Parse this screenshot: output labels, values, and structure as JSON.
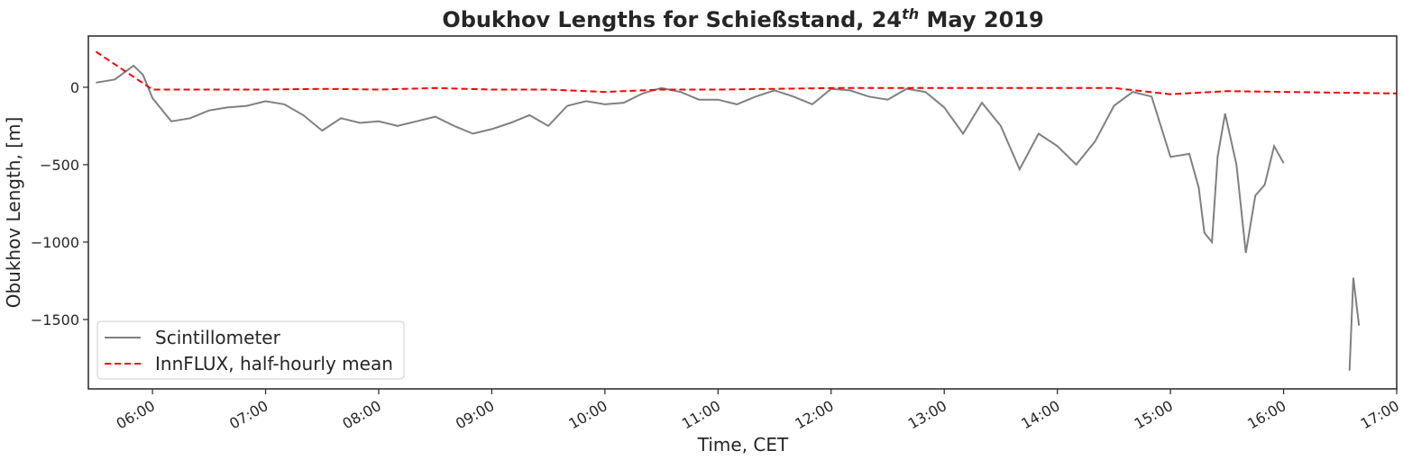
{
  "chart_data": {
    "type": "line",
    "title": [
      "Obukhov Lengths for Schießstand, 24",
      "th",
      " May 2019"
    ],
    "xlabel": "Time, CET",
    "ylabel": "Obukhov Length, [m]",
    "xlim": [
      "05:26",
      "17:00"
    ],
    "xticks": [
      "06:00",
      "07:00",
      "08:00",
      "09:00",
      "10:00",
      "11:00",
      "12:00",
      "13:00",
      "14:00",
      "15:00",
      "16:00",
      "17:00"
    ],
    "ylim": [
      -1948,
      331
    ],
    "yticks": [
      {
        "value": -1500,
        "label": "−1500"
      },
      {
        "value": -1000,
        "label": "−1000"
      },
      {
        "value": -500,
        "label": "−500"
      },
      0
    ],
    "legend": "lower left",
    "series": [
      {
        "name": "Scintillometer",
        "color": "#808080",
        "style": "solid",
        "x": [
          "05:30",
          "05:40",
          "05:50",
          "05:55",
          "06:00",
          "06:10",
          "06:20",
          "06:30",
          "06:40",
          "06:50",
          "07:00",
          "07:10",
          "07:20",
          "07:30",
          "07:40",
          "07:50",
          "08:00",
          "08:10",
          "08:20",
          "08:30",
          "08:40",
          "08:50",
          "09:00",
          "09:10",
          "09:20",
          "09:30",
          "09:40",
          "09:50",
          "10:00",
          "10:10",
          "10:20",
          "10:30",
          "10:40",
          "10:50",
          "11:00",
          "11:10",
          "11:20",
          "11:30",
          "11:40",
          "11:50",
          "12:00",
          "12:10",
          "12:20",
          "12:30",
          "12:40",
          "12:50",
          "13:00",
          "13:10",
          "13:20",
          "13:30",
          "13:40",
          "13:50",
          "14:00",
          "14:10",
          "14:20",
          "14:30",
          "14:40",
          "14:50",
          "15:00",
          "15:10",
          "15:15",
          "15:18",
          "15:22",
          "15:25",
          "15:29",
          "15:35",
          "15:40",
          "15:45",
          "15:50",
          "15:55",
          "16:00",
          "16:10",
          "16:35",
          "16:37",
          "16:40"
        ],
        "values": [
          30,
          50,
          140,
          80,
          -70,
          -220,
          -200,
          -150,
          -130,
          -120,
          -90,
          -110,
          -180,
          -280,
          -200,
          -230,
          -220,
          -250,
          -220,
          -190,
          -250,
          -300,
          -270,
          -230,
          -180,
          -250,
          -120,
          -90,
          -110,
          -100,
          -40,
          -5,
          -30,
          -80,
          -80,
          -110,
          -60,
          -20,
          -60,
          -110,
          -10,
          -20,
          -60,
          -80,
          -10,
          -30,
          -130,
          -300,
          -100,
          -250,
          -530,
          -300,
          -380,
          -500,
          -350,
          -120,
          -30,
          -60,
          -450,
          -430,
          -650,
          -940,
          -1000,
          -450,
          -170,
          -500,
          -1070,
          -700,
          -630,
          -380,
          -490,
          null,
          -1830,
          -1230,
          -1540
        ]
      },
      {
        "name": "InnFLUX, half-hourly mean",
        "color": "#ff0000",
        "style": "dashed",
        "x": [
          "05:30",
          "06:00",
          "06:30",
          "07:00",
          "07:30",
          "08:00",
          "08:30",
          "09:00",
          "09:30",
          "10:00",
          "10:30",
          "11:00",
          "11:30",
          "12:00",
          "12:30",
          "13:00",
          "13:30",
          "14:00",
          "14:30",
          "15:00",
          "15:30",
          "16:00",
          "16:30",
          "17:00"
        ],
        "values": [
          230,
          -15,
          -15,
          -15,
          -10,
          -15,
          -5,
          -15,
          -15,
          -30,
          -15,
          -15,
          -10,
          -5,
          -5,
          -5,
          -5,
          -5,
          -5,
          -45,
          -25,
          -30,
          -35,
          -40
        ]
      }
    ]
  }
}
